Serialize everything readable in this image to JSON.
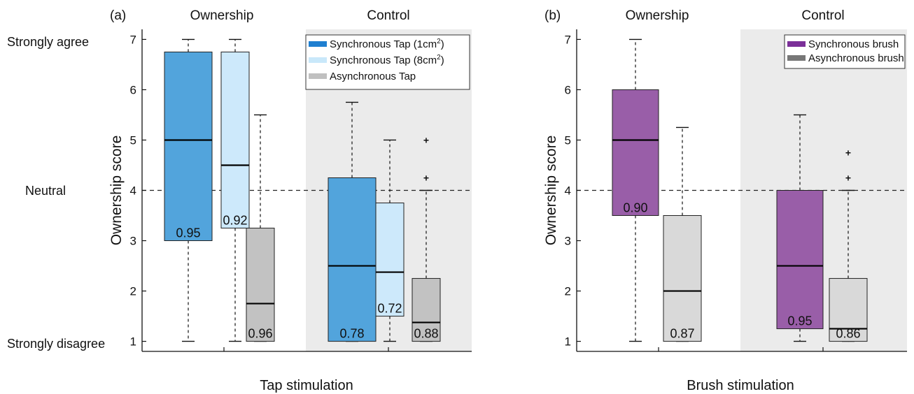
{
  "y_axis_annotations": {
    "strongly_agree": "Strongly agree",
    "neutral": "Neutral",
    "strongly_disagree": "Strongly disagree"
  },
  "chart_data": [
    {
      "type": "box",
      "panel_label": "(a)",
      "group_labels": [
        "Ownership",
        "Control"
      ],
      "xlabel": "Tap stimulation",
      "ylabel": "Ownership score",
      "ylim": [
        0.8,
        7.2
      ],
      "yticks": [
        1,
        2,
        3,
        4,
        5,
        6,
        7
      ],
      "reference_line": 4,
      "legend": {
        "position": "top-right",
        "entries": [
          {
            "label": "Synchronous Tap (1cm",
            "sup": "2",
            "tail": ")",
            "color": "#1f7fd0"
          },
          {
            "label": "Synchronous Tap (8cm",
            "sup": "2",
            "tail": ")",
            "color": "#c9e8fa"
          },
          {
            "label": "Asynchronous Tap",
            "sup": "",
            "tail": "",
            "color": "#c0c0c0"
          }
        ]
      },
      "series": [
        {
          "name": "Synchronous Tap (1cm2)",
          "fill": "#52a4dc",
          "boxes": [
            {
              "group": "Ownership",
              "min": 1,
              "q1": 3,
              "median": 5,
              "q3": 6.75,
              "max": 7,
              "outliers": [],
              "label": "0.95"
            },
            {
              "group": "Control",
              "min": 1,
              "q1": 1,
              "median": 2.5,
              "q3": 4.25,
              "max": 5.75,
              "outliers": [],
              "label": "0.78"
            }
          ]
        },
        {
          "name": "Synchronous Tap (8cm2)",
          "fill": "#cde9fb",
          "boxes": [
            {
              "group": "Ownership",
              "min": 1,
              "q1": 3.25,
              "median": 4.5,
              "q3": 6.75,
              "max": 7,
              "outliers": [],
              "label": "0.92"
            },
            {
              "group": "Control",
              "min": 1,
              "q1": 1.5,
              "median": 2.375,
              "q3": 3.75,
              "max": 5,
              "outliers": [],
              "label": "0.72"
            }
          ]
        },
        {
          "name": "Asynchronous Tap",
          "fill": "#c2c2c2",
          "boxes": [
            {
              "group": "Ownership",
              "min": 1,
              "q1": 1,
              "median": 1.75,
              "q3": 3.25,
              "max": 5.5,
              "outliers": [],
              "label": "0.96"
            },
            {
              "group": "Control",
              "min": 1,
              "q1": 1,
              "median": 1.375,
              "q3": 2.25,
              "max": 4,
              "outliers": [
                4.25,
                5
              ],
              "label": "0.88"
            }
          ]
        }
      ]
    },
    {
      "type": "box",
      "panel_label": "(b)",
      "group_labels": [
        "Ownership",
        "Control"
      ],
      "xlabel": "Brush stimulation",
      "ylabel": "Ownership score",
      "ylim": [
        0.8,
        7.2
      ],
      "yticks": [
        1,
        2,
        3,
        4,
        5,
        6,
        7
      ],
      "reference_line": 4,
      "legend": {
        "position": "top-right",
        "entries": [
          {
            "label": "Synchronous brush",
            "sup": "",
            "tail": "",
            "color": "#7b2f98"
          },
          {
            "label": "Asynchronous brush",
            "sup": "",
            "tail": "",
            "color": "#777777"
          }
        ]
      },
      "series": [
        {
          "name": "Synchronous brush",
          "fill": "#995ea8",
          "boxes": [
            {
              "group": "Ownership",
              "min": 1,
              "q1": 3.5,
              "median": 5,
              "q3": 6,
              "max": 7,
              "outliers": [],
              "label": "0.90"
            },
            {
              "group": "Control",
              "min": 1,
              "q1": 1.25,
              "median": 2.5,
              "q3": 4,
              "max": 5.5,
              "outliers": [],
              "label": "0.95"
            }
          ]
        },
        {
          "name": "Asynchronous brush",
          "fill": "#d9d9d9",
          "boxes": [
            {
              "group": "Ownership",
              "min": 1,
              "q1": 1,
              "median": 2,
              "q3": 3.5,
              "max": 5.25,
              "outliers": [],
              "label": "0.87"
            },
            {
              "group": "Control",
              "min": 1,
              "q1": 1,
              "median": 1.25,
              "q3": 2.25,
              "max": 4,
              "outliers": [
                4.25,
                4.75
              ],
              "label": "0.86"
            }
          ]
        }
      ]
    }
  ]
}
